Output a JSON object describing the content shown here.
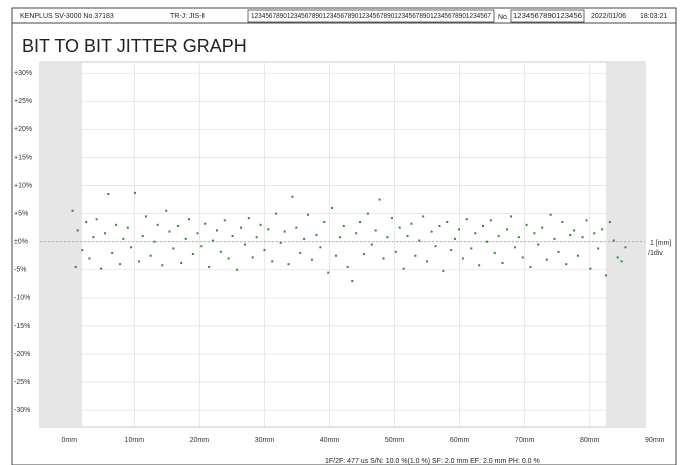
{
  "header": {
    "model": "KENPLUS SV-3000 No.37183",
    "standard": "TR-J: JIS-Ⅱ",
    "code": "1234567890123456789012345678901234567890123456789012345678901234567",
    "no_label": "No.",
    "no_value": "1234567890123456",
    "date": "2022/01/06",
    "time": "18:03:21"
  },
  "chart_data": {
    "type": "scatter",
    "title": "BIT TO BIT JITTER GRAPH",
    "scale_label": "1 [mm]",
    "scale_unit": "/1div",
    "footer": "1F/2F: 477 us  S/N: 10.0 %(1.0 %)  SF: 2.0 mm  EF: 2.0 mm  PH: 0.0 %",
    "color": "#2e8b2e",
    "grid": true,
    "xlim": [
      -4.5,
      88.5
    ],
    "ylim": [
      -33,
      32
    ],
    "xticks": [
      {
        "value": 0,
        "label": "0mm"
      },
      {
        "value": 10,
        "label": "10mm"
      },
      {
        "value": 20,
        "label": "20mm"
      },
      {
        "value": 30,
        "label": "30mm"
      },
      {
        "value": 40,
        "label": "40mm"
      },
      {
        "value": 50,
        "label": "50mm"
      },
      {
        "value": 60,
        "label": "60mm"
      },
      {
        "value": 70,
        "label": "70mm"
      },
      {
        "value": 80,
        "label": "80mm"
      },
      {
        "value": 90,
        "label": "90mm"
      }
    ],
    "yticks": [
      {
        "value": 30,
        "label": "+30%"
      },
      {
        "value": 25,
        "label": "+25%"
      },
      {
        "value": 20,
        "label": "+20%"
      },
      {
        "value": 15,
        "label": "+15%"
      },
      {
        "value": 10,
        "label": "+10%"
      },
      {
        "value": 5,
        "label": "+5%"
      },
      {
        "value": 0,
        "label": "±0%"
      },
      {
        "value": -5,
        "label": "-5%"
      },
      {
        "value": -10,
        "label": "-10%"
      },
      {
        "value": -15,
        "label": "-15%"
      },
      {
        "value": -20,
        "label": "-20%"
      },
      {
        "value": -25,
        "label": "-25%"
      },
      {
        "value": -30,
        "label": "-30%"
      }
    ],
    "x": [
      0.5,
      1.0,
      1.3,
      2.0,
      2.6,
      3.1,
      3.7,
      4.2,
      4.9,
      5.5,
      6.0,
      6.6,
      7.2,
      7.8,
      8.3,
      9.0,
      9.5,
      10.1,
      10.7,
      11.3,
      11.8,
      12.5,
      13.1,
      13.6,
      14.3,
      14.9,
      15.4,
      16.0,
      16.7,
      17.2,
      17.9,
      18.4,
      19.0,
      19.7,
      20.3,
      20.9,
      21.5,
      22.1,
      22.7,
      23.3,
      23.9,
      24.5,
      25.1,
      25.8,
      26.4,
      27.0,
      27.6,
      28.2,
      28.8,
      29.4,
      30.0,
      30.6,
      31.2,
      31.8,
      32.5,
      33.1,
      33.7,
      34.3,
      34.9,
      35.5,
      36.1,
      36.7,
      37.3,
      38.0,
      38.6,
      39.2,
      39.8,
      40.4,
      41.0,
      41.6,
      42.2,
      42.8,
      43.5,
      44.1,
      44.7,
      45.3,
      45.9,
      46.5,
      47.1,
      47.7,
      48.3,
      48.9,
      49.6,
      50.2,
      50.8,
      51.4,
      52.0,
      52.6,
      53.2,
      53.8,
      54.4,
      55.0,
      55.7,
      56.3,
      56.9,
      57.5,
      58.1,
      58.7,
      59.3,
      59.9,
      60.5,
      61.1,
      61.8,
      62.4,
      63.0,
      63.6,
      64.2,
      64.8,
      65.4,
      66.0,
      66.6,
      67.3,
      67.9,
      68.5,
      69.1,
      69.7,
      70.3,
      70.9,
      71.5,
      72.1,
      72.7,
      73.4,
      74.0,
      74.6,
      75.2,
      75.8,
      76.4,
      77.0,
      77.6,
      78.2,
      78.9,
      79.5,
      80.1,
      80.7,
      81.3,
      81.9,
      82.5,
      83.1,
      83.7,
      84.3,
      84.9,
      85.5
    ],
    "values": [
      5.5,
      -4.5,
      2.0,
      -1.5,
      3.5,
      -3.0,
      0.8,
      4.0,
      -4.8,
      1.5,
      8.5,
      -2.0,
      3.0,
      -4.0,
      0.5,
      2.5,
      -1.0,
      8.7,
      -3.5,
      1.0,
      4.5,
      -2.5,
      0.0,
      3.0,
      -4.2,
      5.5,
      1.8,
      -1.2,
      2.8,
      -3.8,
      0.5,
      4.0,
      -2.2,
      1.5,
      -0.8,
      3.2,
      -4.5,
      0.2,
      2.0,
      -1.8,
      3.8,
      -3.0,
      1.0,
      -5.0,
      2.5,
      -0.5,
      4.2,
      -2.8,
      0.8,
      3.0,
      -1.5,
      2.2,
      -3.5,
      5.0,
      -0.2,
      1.8,
      -4.0,
      8.0,
      2.5,
      -2.0,
      0.5,
      4.8,
      -3.2,
      1.2,
      -1.0,
      3.5,
      -5.5,
      6.0,
      -2.5,
      0.8,
      2.8,
      -4.5,
      -7.0,
      1.5,
      3.5,
      -2.2,
      5.0,
      -0.5,
      2.0,
      7.5,
      -3.0,
      0.8,
      4.2,
      -1.8,
      2.5,
      -4.8,
      1.0,
      3.2,
      -2.5,
      0.2,
      4.5,
      -3.5,
      1.8,
      -0.8,
      2.8,
      -5.2,
      3.5,
      -1.5,
      0.5,
      2.2,
      -3.0,
      4.0,
      -1.2,
      1.5,
      -4.2,
      2.8,
      0.0,
      3.8,
      -2.0,
      1.0,
      -3.8,
      2.2,
      4.5,
      -1.0,
      0.8,
      -2.8,
      3.0,
      -4.5,
      1.5,
      -0.5,
      2.5,
      -3.2,
      4.8,
      0.5,
      -1.8,
      3.5,
      -4.0,
      1.2,
      2.0,
      -2.5,
      0.8,
      3.8,
      -4.8,
      1.5,
      -1.2,
      2.2,
      -6.0,
      3.5,
      0.2,
      -2.8,
      -3.5,
      -1.0
    ]
  }
}
